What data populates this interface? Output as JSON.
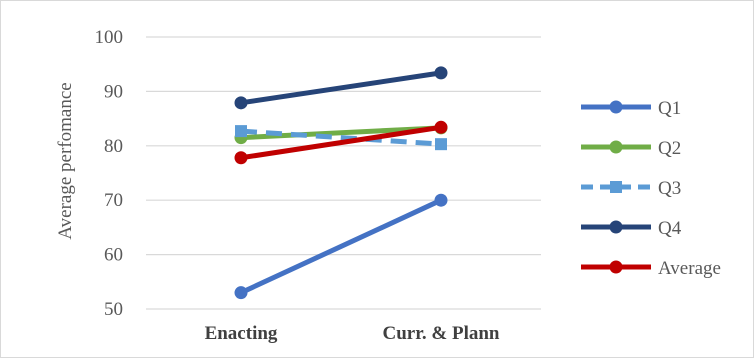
{
  "chart_data": {
    "type": "line",
    "title": "",
    "xlabel": "",
    "ylabel": "Average perfomance",
    "categories": [
      "Enacting",
      "Curr. & Plann"
    ],
    "ylim": [
      50,
      100
    ],
    "yticks": [
      50,
      60,
      70,
      80,
      90,
      100
    ],
    "grid": "horizontal",
    "legend_position": "right",
    "series": [
      {
        "name": "Q1",
        "values": [
          53,
          70
        ],
        "color": "#4472c4",
        "dash": "solid"
      },
      {
        "name": "Q2",
        "values": [
          81.5,
          83.3
        ],
        "color": "#70ad47",
        "dash": "solid"
      },
      {
        "name": "Q3",
        "values": [
          82.7,
          80.3
        ],
        "color": "#5b9bd5",
        "dash": "dashed"
      },
      {
        "name": "Q4",
        "values": [
          87.9,
          93.4
        ],
        "color": "#264478",
        "dash": "solid"
      },
      {
        "name": "Average",
        "values": [
          77.8,
          83.4
        ],
        "color": "#c00000",
        "dash": "solid"
      }
    ]
  }
}
